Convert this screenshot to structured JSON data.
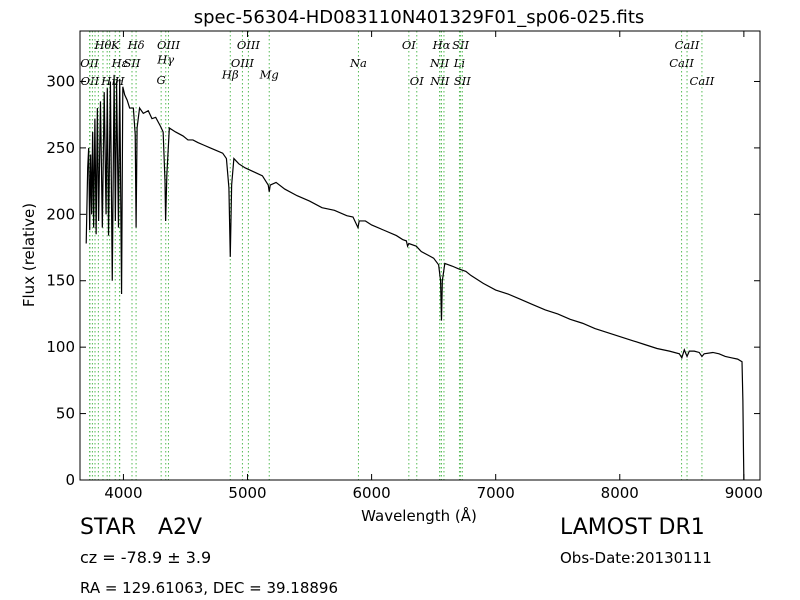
{
  "chart_data": {
    "type": "line",
    "title": "spec-56304-HD083110N401329F01_sp06-025.fits",
    "xlabel": "Wavelength (Å)",
    "ylabel": "Flux (relative)",
    "xlim": [
      3650,
      9130
    ],
    "ylim": [
      0,
      338
    ],
    "xticks": [
      4000,
      5000,
      6000,
      7000,
      8000,
      9000
    ],
    "yticks": [
      0,
      50,
      100,
      150,
      200,
      250,
      300
    ],
    "grid": false,
    "series": [
      {
        "color": "#000000",
        "points": [
          [
            3700,
            178
          ],
          [
            3712,
            235
          ],
          [
            3720,
            250
          ],
          [
            3728,
            188
          ],
          [
            3736,
            245
          ],
          [
            3744,
            200
          ],
          [
            3752,
            262
          ],
          [
            3760,
            190
          ],
          [
            3770,
            272
          ],
          [
            3780,
            185
          ],
          [
            3790,
            280
          ],
          [
            3800,
            195
          ],
          [
            3815,
            285
          ],
          [
            3830,
            190
          ],
          [
            3845,
            292
          ],
          [
            3860,
            200
          ],
          [
            3870,
            295
          ],
          [
            3880,
            184
          ],
          [
            3895,
            300
          ],
          [
            3910,
            150
          ],
          [
            3925,
            305
          ],
          [
            3935,
            195
          ],
          [
            3945,
            298
          ],
          [
            3960,
            190
          ],
          [
            3970,
            302
          ],
          [
            3985,
            140
          ],
          [
            3995,
            296
          ],
          [
            4010,
            290
          ],
          [
            4030,
            286
          ],
          [
            4050,
            280
          ],
          [
            4080,
            280
          ],
          [
            4095,
            260
          ],
          [
            4102,
            190
          ],
          [
            4110,
            265
          ],
          [
            4130,
            280
          ],
          [
            4160,
            276
          ],
          [
            4200,
            278
          ],
          [
            4230,
            272
          ],
          [
            4260,
            273
          ],
          [
            4300,
            266
          ],
          [
            4320,
            262
          ],
          [
            4335,
            225
          ],
          [
            4340,
            195
          ],
          [
            4350,
            230
          ],
          [
            4370,
            265
          ],
          [
            4420,
            262
          ],
          [
            4480,
            259
          ],
          [
            4520,
            256
          ],
          [
            4560,
            256
          ],
          [
            4600,
            254
          ],
          [
            4650,
            252
          ],
          [
            4700,
            250
          ],
          [
            4750,
            248
          ],
          [
            4800,
            246
          ],
          [
            4830,
            242
          ],
          [
            4850,
            220
          ],
          [
            4861,
            168
          ],
          [
            4872,
            222
          ],
          [
            4890,
            242
          ],
          [
            4930,
            238
          ],
          [
            4980,
            235
          ],
          [
            5050,
            232
          ],
          [
            5120,
            229
          ],
          [
            5167,
            222
          ],
          [
            5175,
            217
          ],
          [
            5183,
            222
          ],
          [
            5230,
            224
          ],
          [
            5300,
            219
          ],
          [
            5400,
            214
          ],
          [
            5500,
            210
          ],
          [
            5600,
            205
          ],
          [
            5700,
            203
          ],
          [
            5800,
            199
          ],
          [
            5850,
            198
          ],
          [
            5890,
            190
          ],
          [
            5900,
            195
          ],
          [
            5950,
            195
          ],
          [
            6000,
            192
          ],
          [
            6100,
            188
          ],
          [
            6200,
            184
          ],
          [
            6250,
            181
          ],
          [
            6280,
            180
          ],
          [
            6290,
            176
          ],
          [
            6300,
            178
          ],
          [
            6360,
            176
          ],
          [
            6400,
            172
          ],
          [
            6460,
            169
          ],
          [
            6500,
            167
          ],
          [
            6540,
            162
          ],
          [
            6556,
            150
          ],
          [
            6563,
            120
          ],
          [
            6570,
            150
          ],
          [
            6590,
            163
          ],
          [
            6650,
            161
          ],
          [
            6700,
            159
          ],
          [
            6760,
            157
          ],
          [
            6800,
            154
          ],
          [
            6900,
            148
          ],
          [
            7000,
            143
          ],
          [
            7100,
            140
          ],
          [
            7200,
            136
          ],
          [
            7300,
            132
          ],
          [
            7400,
            128
          ],
          [
            7500,
            125
          ],
          [
            7600,
            121
          ],
          [
            7700,
            118
          ],
          [
            7800,
            114
          ],
          [
            7900,
            111
          ],
          [
            8000,
            108
          ],
          [
            8100,
            105
          ],
          [
            8200,
            102
          ],
          [
            8300,
            99
          ],
          [
            8400,
            97
          ],
          [
            8480,
            95
          ],
          [
            8500,
            92
          ],
          [
            8520,
            98
          ],
          [
            8542,
            93
          ],
          [
            8560,
            97
          ],
          [
            8600,
            97
          ],
          [
            8640,
            96
          ],
          [
            8662,
            93
          ],
          [
            8680,
            95
          ],
          [
            8750,
            96
          ],
          [
            8800,
            95
          ],
          [
            8850,
            93
          ],
          [
            8900,
            92
          ],
          [
            8950,
            91
          ],
          [
            8985,
            89
          ],
          [
            8992,
            60
          ],
          [
            8997,
            20
          ],
          [
            9000,
            0
          ]
        ]
      }
    ],
    "line_markers": {
      "color": "#55bb55",
      "lines": [
        {
          "w": 3727,
          "label": "OII",
          "row": 2
        },
        {
          "w": 3730,
          "label": "OII",
          "row": 3
        },
        {
          "w": 3750,
          "label": "",
          "row": 0
        },
        {
          "w": 3771,
          "label": "",
          "row": 0
        },
        {
          "w": 3798,
          "label": "",
          "row": 0
        },
        {
          "w": 3835,
          "label": "Hθ",
          "row": 1
        },
        {
          "w": 3869,
          "label": "",
          "row": 0
        },
        {
          "w": 3889,
          "label": "Hη",
          "row": 3
        },
        {
          "w": 3934,
          "label": "K",
          "row": 1
        },
        {
          "w": 3968,
          "label": "H",
          "row": 3
        },
        {
          "w": 3970,
          "label": "Hε",
          "row": 2
        },
        {
          "w": 4069,
          "label": "SII",
          "row": 2
        },
        {
          "w": 4102,
          "label": "Hδ",
          "row": 1
        },
        {
          "w": 4304,
          "label": "G",
          "row": 4
        },
        {
          "w": 4341,
          "label": "Hγ",
          "row": 2.6
        },
        {
          "w": 4363,
          "label": "OIII",
          "row": 1
        },
        {
          "w": 4861,
          "label": "Hβ",
          "row": 3.8
        },
        {
          "w": 4959,
          "label": "OIII",
          "row": 2
        },
        {
          "w": 5007,
          "label": "OIII",
          "row": 1
        },
        {
          "w": 5175,
          "label": "Mg",
          "row": 3.8
        },
        {
          "w": 5894,
          "label": "Na",
          "row": 2
        },
        {
          "w": 6300,
          "label": "OI",
          "row": 1
        },
        {
          "w": 6364,
          "label": "OI",
          "row": 3
        },
        {
          "w": 6548,
          "label": "NII",
          "row": 2
        },
        {
          "w": 6550,
          "label": "NII",
          "row": 3
        },
        {
          "w": 6563,
          "label": "Hα",
          "row": 1
        },
        {
          "w": 6583,
          "label": "",
          "row": 0
        },
        {
          "w": 6708,
          "label": "Li",
          "row": 2
        },
        {
          "w": 6717,
          "label": "SII",
          "row": 1
        },
        {
          "w": 6731,
          "label": "SII",
          "row": 3
        },
        {
          "w": 8498,
          "label": "CaII",
          "row": 2
        },
        {
          "w": 8542,
          "label": "CaII",
          "row": 1
        },
        {
          "w": 8662,
          "label": "CaII",
          "row": 3
        }
      ]
    }
  },
  "info": {
    "object_class": "STAR",
    "subclass": "A2V",
    "survey": "LAMOST DR1",
    "redshift": "cz = -78.9 ± 3.9",
    "obs_date": "Obs-Date:20130111",
    "coords": "RA = 129.61063, DEC = 39.18896"
  }
}
